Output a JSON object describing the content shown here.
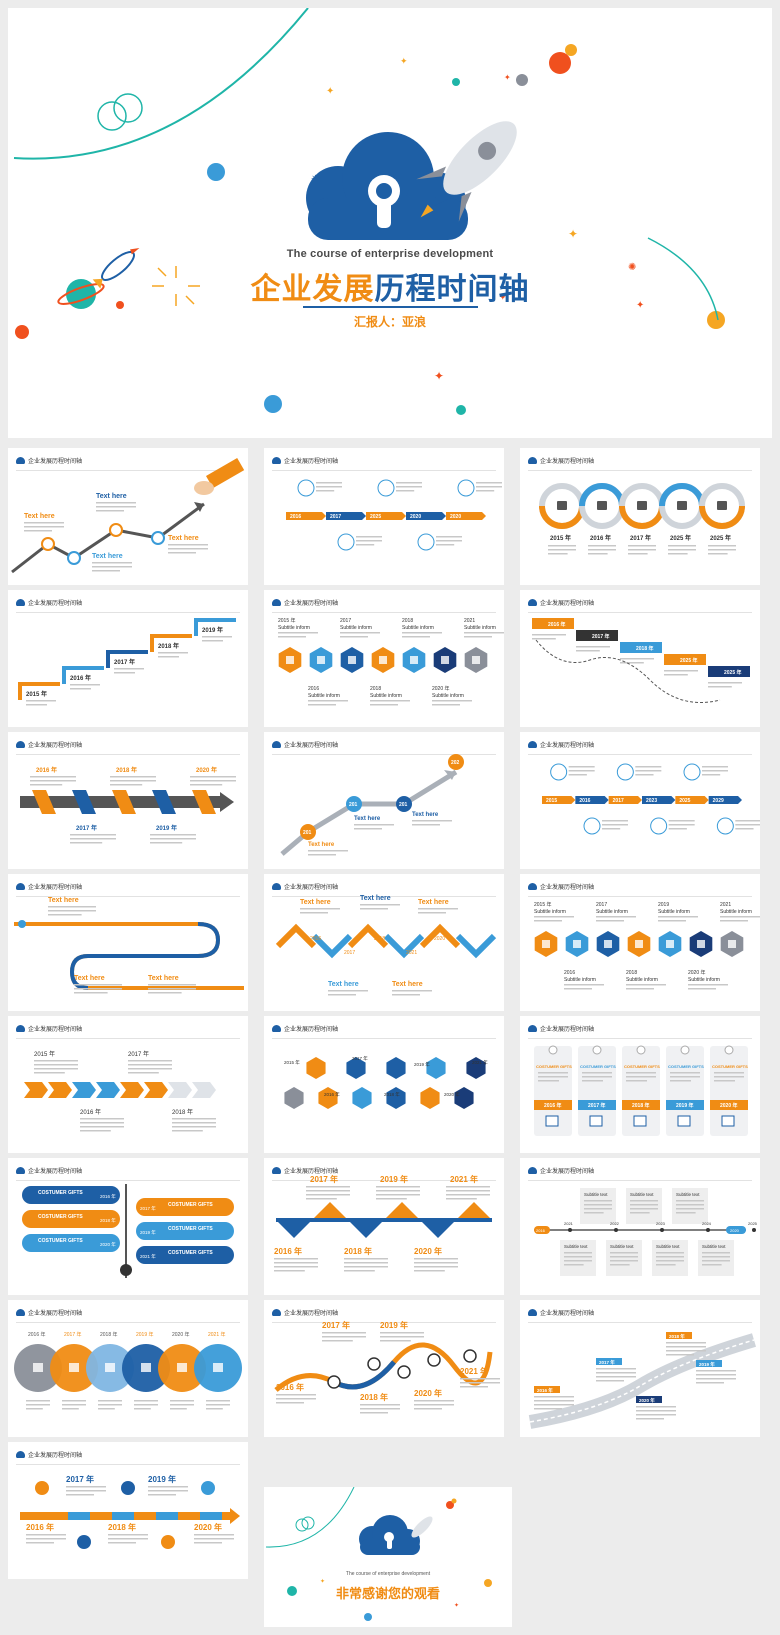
{
  "cover": {
    "subtitle_en": "The course of enterprise development",
    "title_part1": "企业发展",
    "title_part2": "历程时间轴",
    "presenter": "汇报人：亚浪"
  },
  "slide_header": "企业发展历程时间轴",
  "slides": [
    {
      "id": 1,
      "kind": "zigzag-arrow",
      "labels": [
        "Text here",
        "Text here",
        "Text here",
        "Text here"
      ]
    },
    {
      "id": 2,
      "kind": "icon-arrow-band",
      "years": [
        "2016",
        "2017",
        "2025",
        "2020",
        "2020"
      ]
    },
    {
      "id": 3,
      "kind": "ring-chain",
      "years": [
        "2015 年",
        "2016 年",
        "2017 年",
        "2025 年",
        "2025 年"
      ]
    },
    {
      "id": 4,
      "kind": "staircase",
      "years": [
        "2015 年",
        "2016 年",
        "2017 年",
        "2018 年",
        "2019 年"
      ]
    },
    {
      "id": 5,
      "kind": "hex-row",
      "years_top": [
        "2015 年",
        "2017",
        "2018",
        "2021"
      ],
      "years_bottom": [
        "2016",
        "2018",
        "2020 年"
      ],
      "caption": "Subtitle inform"
    },
    {
      "id": 6,
      "kind": "descending-steps",
      "years": [
        "2016 年",
        "2017 年",
        "2018 年",
        "2025 年",
        "2025 年"
      ]
    },
    {
      "id": 7,
      "kind": "twisted-ribbon",
      "years_top": [
        "2016 年",
        "2018 年",
        "2020 年"
      ],
      "years_bottom": [
        "2017 年",
        "2019 年"
      ]
    },
    {
      "id": 8,
      "kind": "rising-line",
      "years": [
        "201",
        "201",
        "201",
        "202"
      ],
      "labels": [
        "Text here",
        "Text here",
        "Text here"
      ]
    },
    {
      "id": 9,
      "kind": "icon-arrow-band",
      "years": [
        "2015",
        "2016",
        "2017",
        "2023",
        "2025",
        "2029"
      ]
    },
    {
      "id": 10,
      "kind": "winding-road",
      "labels": [
        "Text here",
        "Text here",
        "Text here"
      ]
    },
    {
      "id": 11,
      "kind": "chevron-wave",
      "labels": [
        "Text here",
        "Text here",
        "Text here",
        "Text here",
        "Text here"
      ],
      "years": [
        "2016",
        "2018",
        "2020",
        "2017",
        "2021"
      ]
    },
    {
      "id": 12,
      "kind": "hex-row",
      "years_top": [
        "2015 年",
        "2017",
        "2019",
        "2021"
      ],
      "years_bottom": [
        "2016",
        "2018",
        "2020 年"
      ],
      "caption": "Subtitle inform"
    },
    {
      "id": 13,
      "kind": "chevron-line",
      "years": [
        "2015 年",
        "2017 年",
        "2016 年",
        "2018 年"
      ]
    },
    {
      "id": 14,
      "kind": "hex-grid",
      "years": [
        "2015 年",
        "2017 年",
        "2019 年",
        "2021 年",
        "2016 年",
        "2018 年",
        "2020 年"
      ]
    },
    {
      "id": 15,
      "kind": "gift-cards",
      "caption": "COSTUMER GIFTS",
      "years": [
        "2016 年",
        "2017 年",
        "2018 年",
        "2019 年",
        "2020 年"
      ]
    },
    {
      "id": 16,
      "kind": "vertical-bars",
      "caption": "COSTUMER GIFTS",
      "years": [
        "2016 年",
        "2018 年",
        "2020 年",
        "2017 年",
        "2019 年",
        "2021 年"
      ]
    },
    {
      "id": 17,
      "kind": "wave-timeline",
      "years": [
        "2017 年",
        "2019 年",
        "2021 年",
        "2016 年",
        "2018 年",
        "2020 年"
      ]
    },
    {
      "id": 18,
      "kind": "box-timeline",
      "caption": "Subtitle text",
      "years": [
        "2016",
        "2020",
        "2021",
        "2022",
        "2023",
        "2024",
        "2025"
      ]
    },
    {
      "id": 19,
      "kind": "circle-overlap",
      "years": [
        "2016 年",
        "2017 年",
        "2018 年",
        "2019 年",
        "2020 年",
        "2021 年"
      ]
    },
    {
      "id": 20,
      "kind": "loop-curve",
      "years": [
        "2017 年",
        "2019 年",
        "2016 年",
        "2018 年",
        "2020 年",
        "2021 年"
      ]
    },
    {
      "id": 21,
      "kind": "road-perspective",
      "years": [
        "2016 年",
        "2017 年",
        "2018 年",
        "2019 年",
        "2020 年"
      ]
    },
    {
      "id": 22,
      "kind": "pin-arrow",
      "years": [
        "2017 年",
        "2019 年",
        "2016 年",
        "2018 年",
        "2020 年"
      ]
    }
  ],
  "ending": {
    "subtitle_en": "The course of enterprise development",
    "title": "非常感谢您的观看"
  },
  "colors": {
    "orange": "#f08c14",
    "blue": "#1e5fa5",
    "light_blue": "#3a9bd8",
    "navy": "#1a3c78",
    "teal": "#1fb5a8",
    "red": "#f0501e",
    "grey": "#8a8f99"
  }
}
